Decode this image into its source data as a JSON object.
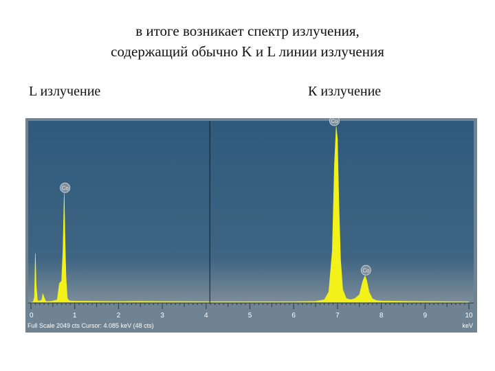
{
  "heading": {
    "line1": "в итоге возникает спектр излучения,",
    "line2": "содержащий обычно K и L линии излучения"
  },
  "labels": {
    "l_radiation": "L излучение",
    "k_radiation": "К излучение"
  },
  "chart_data": {
    "type": "line",
    "xlim": [
      0,
      10
    ],
    "xticks": [
      0,
      1,
      2,
      3,
      4,
      5,
      6,
      7,
      8,
      9,
      10
    ],
    "xunit": "keV",
    "status_text": "Full Scale 2049 cts  Cursor: 4.085 keV (48 cts)",
    "cursor_kev": 4.085,
    "full_scale_cts": 2049,
    "spectrum": {
      "x": [
        0,
        0.05,
        0.08,
        0.1,
        0.12,
        0.15,
        0.2,
        0.25,
        0.27,
        0.3,
        0.33,
        0.35,
        0.4,
        0.5,
        0.6,
        0.65,
        0.7,
        0.73,
        0.76,
        0.78,
        0.8,
        0.83,
        0.86,
        0.9,
        1.0,
        1.5,
        2.0,
        2.5,
        3.0,
        3.5,
        4.0,
        4.5,
        5.0,
        5.5,
        6.0,
        6.5,
        6.7,
        6.8,
        6.88,
        6.93,
        6.97,
        7.0,
        7.03,
        7.07,
        7.12,
        7.2,
        7.3,
        7.4,
        7.5,
        7.58,
        7.63,
        7.67,
        7.72,
        7.8,
        7.9,
        8.0,
        8.5,
        9.0,
        9.5,
        9.8,
        10.0
      ],
      "y": [
        0,
        5,
        60,
        570,
        200,
        20,
        15,
        30,
        100,
        60,
        20,
        10,
        10,
        15,
        30,
        220,
        250,
        600,
        1270,
        700,
        300,
        50,
        25,
        15,
        14,
        12,
        10,
        12,
        10,
        9,
        8,
        8,
        7,
        7,
        8,
        12,
        30,
        120,
        600,
        1600,
        2050,
        1900,
        1200,
        500,
        150,
        45,
        30,
        45,
        90,
        250,
        310,
        250,
        120,
        40,
        20,
        15,
        12,
        10,
        8,
        7,
        6
      ]
    },
    "peak_labels": [
      {
        "x": 0.78,
        "y": 1270,
        "text": "Co"
      },
      {
        "x": 6.93,
        "y": 2050,
        "text": "Co"
      },
      {
        "x": 7.65,
        "y": 310,
        "text": "Co"
      }
    ]
  }
}
